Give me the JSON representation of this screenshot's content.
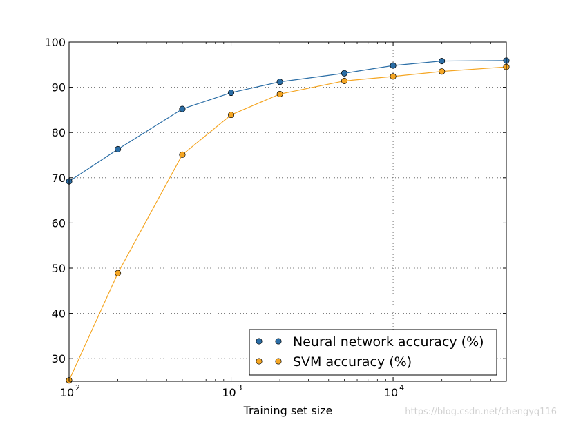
{
  "chart_data": {
    "type": "line",
    "title": "",
    "xlabel": "Training set size",
    "ylabel": "",
    "xscale": "log",
    "xlim": [
      100,
      50000
    ],
    "ylim": [
      25,
      100
    ],
    "x_ticks": [
      {
        "value": 100,
        "base": "10",
        "exp": "2"
      },
      {
        "value": 1000,
        "base": "10",
        "exp": "3"
      },
      {
        "value": 10000,
        "base": "10",
        "exp": "4"
      }
    ],
    "y_ticks": [
      30,
      40,
      50,
      60,
      70,
      80,
      90,
      100
    ],
    "grid": true,
    "legend_position": "lower-right",
    "x": [
      100,
      200,
      500,
      1000,
      2000,
      5000,
      10000,
      20000,
      50000
    ],
    "series": [
      {
        "name": "Neural network accuracy (%)",
        "color": "#2b6ea6",
        "values": [
          69.2,
          76.3,
          85.2,
          88.8,
          91.2,
          93.1,
          94.8,
          95.8,
          95.9
        ]
      },
      {
        "name": "SVM accuracy (%)",
        "color": "#f5a623",
        "values": [
          25.2,
          48.9,
          75.1,
          83.9,
          88.5,
          91.4,
          92.4,
          93.5,
          94.5
        ]
      }
    ]
  },
  "watermark": "https://blog.csdn.net/chengyq116"
}
